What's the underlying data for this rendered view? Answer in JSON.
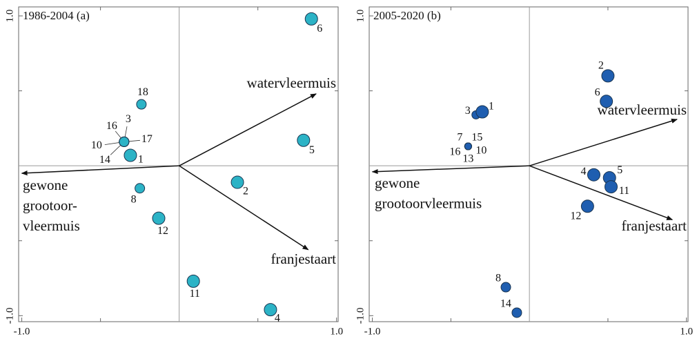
{
  "chart_data": [
    {
      "type": "scatter",
      "title": "1986-2004 (a)",
      "xlim": [
        -1.02,
        1.01
      ],
      "ylim": [
        -1.04,
        1.06
      ],
      "xticks": [
        {
          "value": -1,
          "label": "-1.0"
        },
        {
          "value": 1,
          "label": "1.0"
        }
      ],
      "yticks": [
        {
          "value": -1,
          "label": "-1.0"
        },
        {
          "value": 1,
          "label": "1.0"
        }
      ],
      "minor_ticks": [
        -0.5,
        0.5
      ],
      "color": "#2cb3c6",
      "point_labels": [
        "6",
        "18",
        "16",
        "3",
        "17",
        "10",
        "14",
        "1",
        "5",
        "2",
        "8",
        "12",
        "11",
        "4"
      ],
      "x": [
        0.84,
        -0.24,
        -0.35,
        -0.35,
        -0.35,
        -0.35,
        -0.35,
        -0.31,
        0.79,
        0.37,
        -0.25,
        -0.13,
        0.09,
        0.58
      ],
      "values": [
        0.98,
        0.41,
        0.16,
        0.16,
        0.16,
        0.16,
        0.16,
        0.07,
        0.17,
        -0.11,
        -0.15,
        -0.35,
        -0.77,
        -0.96
      ],
      "sizes": [
        9,
        7,
        7,
        7,
        7,
        7,
        7,
        9,
        9,
        9,
        7,
        9,
        9,
        9
      ],
      "vectors": [
        {
          "label": [
            "watervleermuis"
          ],
          "x": 0.87,
          "y": 0.48
        },
        {
          "label": [
            "gewone",
            "grootoor-",
            "vleermuis"
          ],
          "x": -1.0,
          "y": -0.05
        },
        {
          "label": [
            "franjestaart"
          ],
          "x": 0.82,
          "y": -0.56
        }
      ]
    },
    {
      "type": "scatter",
      "title": "2005-2020 (b)",
      "xlim": [
        -1.02,
        1.01
      ],
      "ylim": [
        -1.04,
        1.06
      ],
      "xticks": [
        {
          "value": -1,
          "label": "-1.0"
        },
        {
          "value": 1,
          "label": "1.0"
        }
      ],
      "yticks": [
        {
          "value": -1,
          "label": "-1.0"
        },
        {
          "value": 1,
          "label": "1.0"
        }
      ],
      "minor_ticks": [
        -0.5,
        0.5
      ],
      "color": "#1f5eb0",
      "point_labels": [
        "2",
        "6",
        "3",
        "1",
        "7",
        "15",
        "16",
        "13",
        "10",
        "4",
        "5",
        "11",
        "12",
        "8",
        "14"
      ],
      "x": [
        0.5,
        0.49,
        -0.34,
        -0.3,
        -0.39,
        -0.39,
        -0.39,
        -0.39,
        -0.39,
        0.41,
        0.51,
        0.52,
        0.37,
        -0.15,
        -0.08
      ],
      "values": [
        0.6,
        0.43,
        0.34,
        0.36,
        0.13,
        0.13,
        0.13,
        0.13,
        0.13,
        -0.06,
        -0.08,
        -0.14,
        -0.27,
        -0.81,
        -0.98
      ],
      "sizes": [
        9,
        9,
        6,
        9,
        5,
        5,
        5,
        5,
        5,
        9,
        9,
        9,
        9,
        7,
        7
      ],
      "vectors": [
        {
          "label": [
            "watervleermuis"
          ],
          "x": 0.94,
          "y": 0.31
        },
        {
          "label": [
            "gewone",
            "grootoorvleermuis"
          ],
          "x": -1.0,
          "y": -0.04
        },
        {
          "label": [
            "franjestaart"
          ],
          "x": 0.91,
          "y": -0.36
        }
      ]
    }
  ]
}
